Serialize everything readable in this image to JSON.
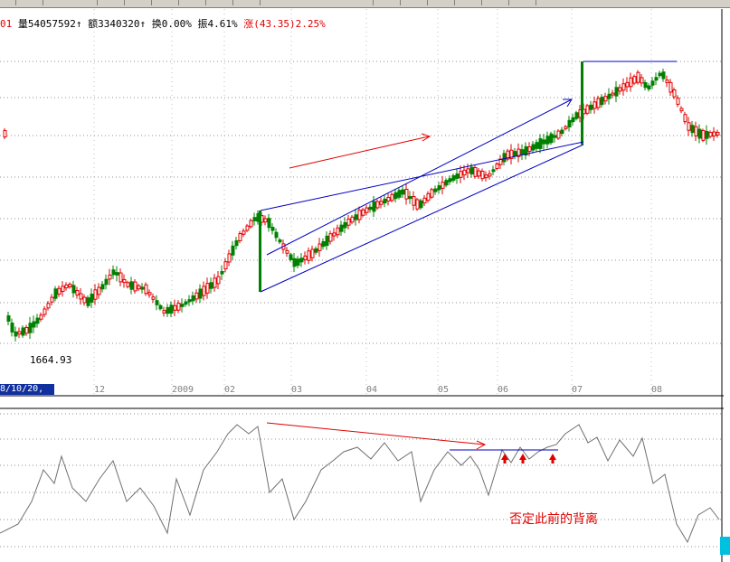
{
  "info_bar": {
    "prefix": "01",
    "volume": "量54057592",
    "amount": "额3340320",
    "turnover": "换0.00%",
    "amplitude": "振4.61%",
    "change_label": "涨",
    "change_value": "(43.35)2.25%"
  },
  "price_low_label": "1664.93",
  "date_box": "8/10/20,",
  "x_ticks": [
    "12",
    "2009",
    "02",
    "03",
    "04",
    "05",
    "06",
    "07",
    "08"
  ],
  "annotation": "否定此前的背离",
  "colors": {
    "up": "#e00000",
    "down": "#008000",
    "trend": "#0000c0",
    "arrow": "#e00000",
    "grid": "#909090"
  },
  "chart_data": {
    "type": "candlestick",
    "price_low": 1664.93,
    "grid": true
  }
}
